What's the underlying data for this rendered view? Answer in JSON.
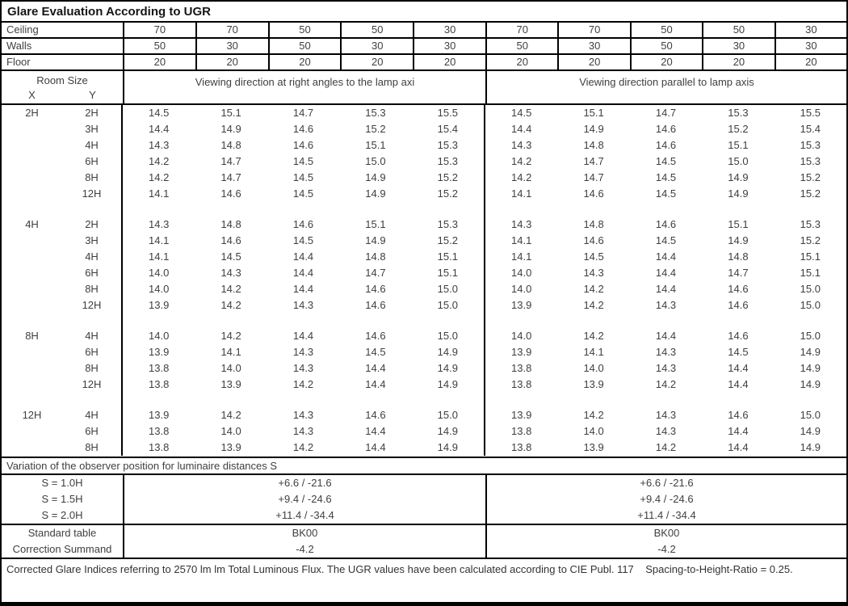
{
  "title": "Glare Evaluation According to UGR",
  "surface_rows": [
    {
      "label": "Ceiling",
      "values": [
        "70",
        "70",
        "50",
        "50",
        "30",
        "70",
        "70",
        "50",
        "50",
        "30"
      ]
    },
    {
      "label": "Walls",
      "values": [
        "50",
        "30",
        "50",
        "30",
        "30",
        "50",
        "30",
        "50",
        "30",
        "30"
      ]
    },
    {
      "label": "Floor",
      "values": [
        "20",
        "20",
        "20",
        "20",
        "20",
        "20",
        "20",
        "20",
        "20",
        "20"
      ]
    }
  ],
  "header": {
    "room_size_label": "Room Size",
    "x_label": "X",
    "y_label": "Y",
    "left_heading": "Viewing direction at right angles to the lamp axi",
    "right_heading": "Viewing direction parallel to lamp axis"
  },
  "groups": [
    {
      "x": "2H",
      "rows": [
        {
          "y": "2H",
          "left": [
            "14.5",
            "15.1",
            "14.7",
            "15.3",
            "15.5"
          ],
          "right": [
            "14.5",
            "15.1",
            "14.7",
            "15.3",
            "15.5"
          ]
        },
        {
          "y": "3H",
          "left": [
            "14.4",
            "14.9",
            "14.6",
            "15.2",
            "15.4"
          ],
          "right": [
            "14.4",
            "14.9",
            "14.6",
            "15.2",
            "15.4"
          ]
        },
        {
          "y": "4H",
          "left": [
            "14.3",
            "14.8",
            "14.6",
            "15.1",
            "15.3"
          ],
          "right": [
            "14.3",
            "14.8",
            "14.6",
            "15.1",
            "15.3"
          ]
        },
        {
          "y": "6H",
          "left": [
            "14.2",
            "14.7",
            "14.5",
            "15.0",
            "15.3"
          ],
          "right": [
            "14.2",
            "14.7",
            "14.5",
            "15.0",
            "15.3"
          ]
        },
        {
          "y": "8H",
          "left": [
            "14.2",
            "14.7",
            "14.5",
            "14.9",
            "15.2"
          ],
          "right": [
            "14.2",
            "14.7",
            "14.5",
            "14.9",
            "15.2"
          ]
        },
        {
          "y": "12H",
          "left": [
            "14.1",
            "14.6",
            "14.5",
            "14.9",
            "15.2"
          ],
          "right": [
            "14.1",
            "14.6",
            "14.5",
            "14.9",
            "15.2"
          ]
        }
      ]
    },
    {
      "x": "4H",
      "rows": [
        {
          "y": "2H",
          "left": [
            "14.3",
            "14.8",
            "14.6",
            "15.1",
            "15.3"
          ],
          "right": [
            "14.3",
            "14.8",
            "14.6",
            "15.1",
            "15.3"
          ]
        },
        {
          "y": "3H",
          "left": [
            "14.1",
            "14.6",
            "14.5",
            "14.9",
            "15.2"
          ],
          "right": [
            "14.1",
            "14.6",
            "14.5",
            "14.9",
            "15.2"
          ]
        },
        {
          "y": "4H",
          "left": [
            "14.1",
            "14.5",
            "14.4",
            "14.8",
            "15.1"
          ],
          "right": [
            "14.1",
            "14.5",
            "14.4",
            "14.8",
            "15.1"
          ]
        },
        {
          "y": "6H",
          "left": [
            "14.0",
            "14.3",
            "14.4",
            "14.7",
            "15.1"
          ],
          "right": [
            "14.0",
            "14.3",
            "14.4",
            "14.7",
            "15.1"
          ]
        },
        {
          "y": "8H",
          "left": [
            "14.0",
            "14.2",
            "14.4",
            "14.6",
            "15.0"
          ],
          "right": [
            "14.0",
            "14.2",
            "14.4",
            "14.6",
            "15.0"
          ]
        },
        {
          "y": "12H",
          "left": [
            "13.9",
            "14.2",
            "14.3",
            "14.6",
            "15.0"
          ],
          "right": [
            "13.9",
            "14.2",
            "14.3",
            "14.6",
            "15.0"
          ]
        }
      ]
    },
    {
      "x": "8H",
      "rows": [
        {
          "y": "4H",
          "left": [
            "14.0",
            "14.2",
            "14.4",
            "14.6",
            "15.0"
          ],
          "right": [
            "14.0",
            "14.2",
            "14.4",
            "14.6",
            "15.0"
          ]
        },
        {
          "y": "6H",
          "left": [
            "13.9",
            "14.1",
            "14.3",
            "14.5",
            "14.9"
          ],
          "right": [
            "13.9",
            "14.1",
            "14.3",
            "14.5",
            "14.9"
          ]
        },
        {
          "y": "8H",
          "left": [
            "13.8",
            "14.0",
            "14.3",
            "14.4",
            "14.9"
          ],
          "right": [
            "13.8",
            "14.0",
            "14.3",
            "14.4",
            "14.9"
          ]
        },
        {
          "y": "12H",
          "left": [
            "13.8",
            "13.9",
            "14.2",
            "14.4",
            "14.9"
          ],
          "right": [
            "13.8",
            "13.9",
            "14.2",
            "14.4",
            "14.9"
          ]
        }
      ]
    },
    {
      "x": "12H",
      "rows": [
        {
          "y": "4H",
          "left": [
            "13.9",
            "14.2",
            "14.3",
            "14.6",
            "15.0"
          ],
          "right": [
            "13.9",
            "14.2",
            "14.3",
            "14.6",
            "15.0"
          ]
        },
        {
          "y": "6H",
          "left": [
            "13.8",
            "14.0",
            "14.3",
            "14.4",
            "14.9"
          ],
          "right": [
            "13.8",
            "14.0",
            "14.3",
            "14.4",
            "14.9"
          ]
        },
        {
          "y": "8H",
          "left": [
            "13.8",
            "13.9",
            "14.2",
            "14.4",
            "14.9"
          ],
          "right": [
            "13.8",
            "13.9",
            "14.2",
            "14.4",
            "14.9"
          ]
        }
      ]
    }
  ],
  "variation_heading": "Variation of the observer position for luminaire distances S",
  "variation_rows": [
    {
      "label": "S = 1.0H",
      "left": "+6.6 / -21.6",
      "right": "+6.6 / -21.6"
    },
    {
      "label": "S = 1.5H",
      "left": "+9.4 / -24.6",
      "right": "+9.4 / -24.6"
    },
    {
      "label": "S = 2.0H",
      "left": "+11.4 / -34.4",
      "right": "+11.4 / -34.4"
    }
  ],
  "summary_rows": [
    {
      "label": "Standard table",
      "left": "BK00",
      "right": "BK00"
    },
    {
      "label": "Correction Summand",
      "left": "-4.2",
      "right": "-4.2"
    }
  ],
  "footer": "Corrected Glare Indices referring to 2570 lm lm Total Luminous Flux. The UGR values have been calculated according to CIE Publ. 117    Spacing-to-Height-Ratio = 0.25.",
  "colors": {
    "background": "#ffffff",
    "border": "#000000",
    "text": "#3f3f3f",
    "title_text": "#161616"
  }
}
